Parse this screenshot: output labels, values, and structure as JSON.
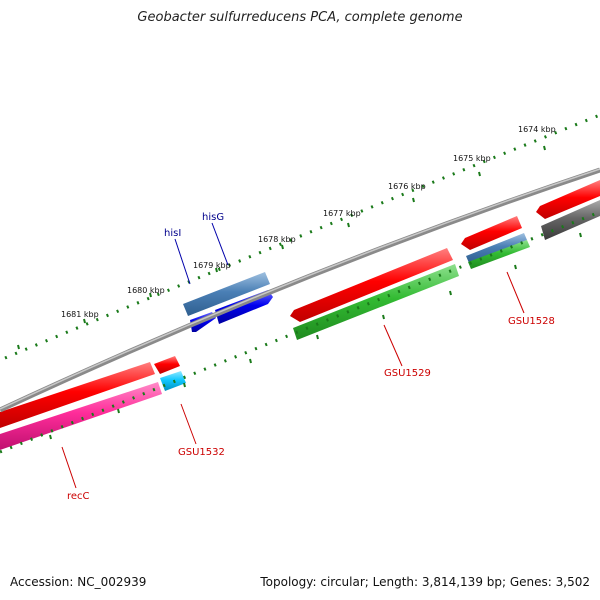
{
  "title": "Geobacter sulfurreducens PCA, complete genome",
  "footer": {
    "accession": "Accession: NC_002939",
    "summary": "Topology: circular; Length: 3,814,139 bp; Genes: 3,502"
  },
  "scale": {
    "unit": "kbp",
    "labels": [
      "1674 kbp",
      "1675 kbp",
      "1676 kbp",
      "1677 kbp",
      "1678 kbp",
      "1679 kbp",
      "1680 kbp",
      "1681 kbp"
    ]
  },
  "gene_labels": {
    "hisI": "hisI",
    "hisG": "hisG",
    "recC": "recC",
    "GSU1532": "GSU1532",
    "GSU1529": "GSU1529",
    "GSU1528": "GSU1528"
  },
  "colors": {
    "backbone": "#8a8a8a",
    "tick": "#1a7a1a",
    "cds_red": "#ff0000",
    "gene_blue": "#0000ee",
    "gene_steel": "#4a7fb5",
    "rna_green": "#33bb33",
    "gene_pink": "#ff2d9a",
    "gene_cyan": "#10c8ff",
    "gene_gray": "#666666",
    "label_blue": "#00008b",
    "label_red": "#cc0000"
  }
}
